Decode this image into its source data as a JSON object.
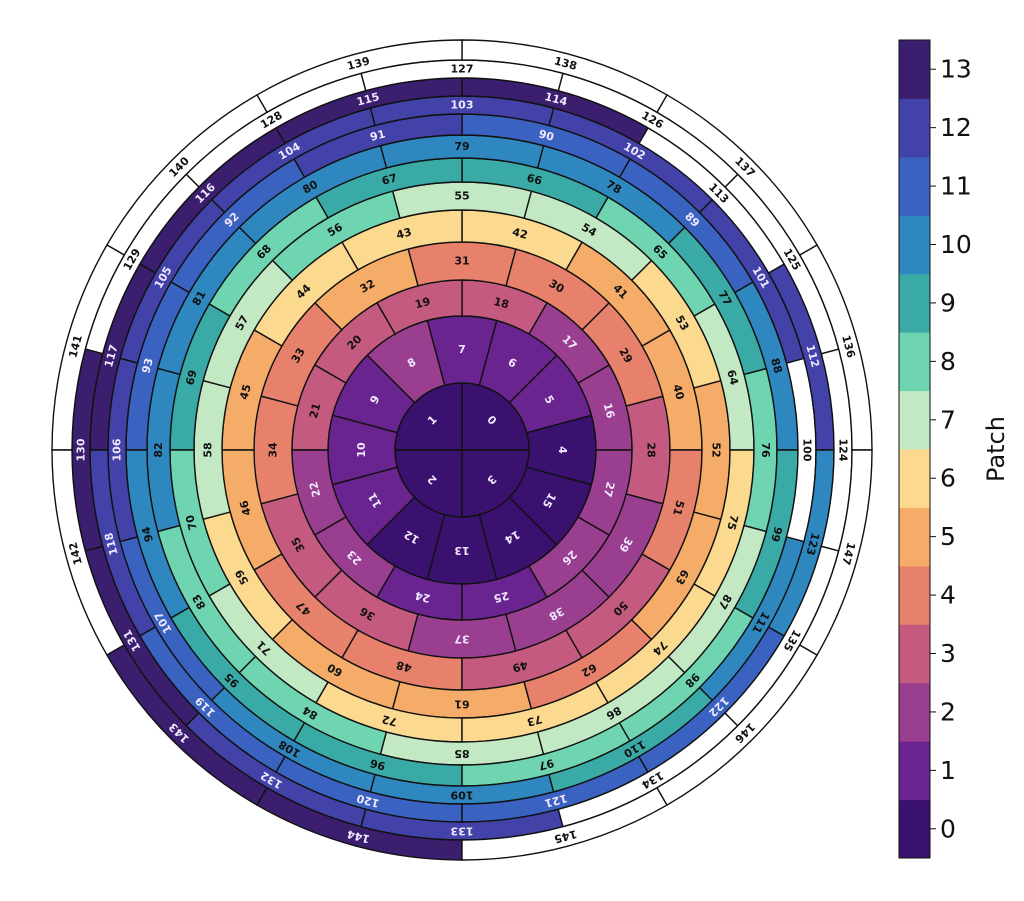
{
  "colorbar": {
    "label": "Patch",
    "ticks": [
      "0",
      "1",
      "2",
      "3",
      "4",
      "5",
      "6",
      "7",
      "8",
      "9",
      "10",
      "11",
      "12",
      "13"
    ],
    "colors": [
      "#3b1170",
      "#6a2490",
      "#9a3f90",
      "#c45a80",
      "#e8816b",
      "#f4ac68",
      "#fbd98e",
      "#c2e8c4",
      "#6fd4b0",
      "#3aaaa6",
      "#2f87c0",
      "#3a62c0",
      "#4242a8",
      "#3b1f6e"
    ]
  },
  "unassigned_color": "#ffffff",
  "rings": [
    {
      "cells": [
        "0",
        "1",
        "2",
        "3"
      ],
      "patches": [
        0,
        0,
        0,
        0
      ]
    },
    {
      "cells": [
        "4",
        "5",
        "6",
        "7",
        "8",
        "9",
        "10",
        "11",
        "12",
        "13",
        "14",
        "15"
      ],
      "patches": [
        0,
        1,
        1,
        1,
        2,
        1,
        1,
        1,
        0,
        0,
        0,
        0
      ]
    },
    {
      "cells": [
        "16",
        "17",
        "18",
        "19",
        "20",
        "21",
        "22",
        "23",
        "24",
        "25",
        "26",
        "27"
      ],
      "patches": [
        2,
        2,
        3,
        3,
        3,
        3,
        2,
        2,
        1,
        1,
        2,
        2
      ]
    },
    {
      "cells": [
        "28",
        "29",
        "30",
        "31",
        "32",
        "33",
        "34",
        "35",
        "36",
        "37",
        "38",
        "39"
      ],
      "patches": [
        3,
        4,
        4,
        4,
        5,
        4,
        4,
        3,
        3,
        2,
        2,
        2
      ]
    },
    {
      "cells": [
        "40",
        "41",
        "42",
        "43",
        "44",
        "45",
        "46",
        "47",
        "48",
        "49",
        "50",
        "51"
      ],
      "patches": [
        5,
        5,
        6,
        6,
        6,
        5,
        5,
        4,
        4,
        3,
        3,
        4
      ]
    },
    {
      "cells": [
        "52",
        "53",
        "54",
        "55",
        "56",
        "57",
        "58",
        "59",
        "60",
        "61",
        "62",
        "63"
      ],
      "patches": [
        5,
        6,
        7,
        7,
        8,
        7,
        7,
        6,
        5,
        5,
        4,
        5
      ]
    },
    {
      "cells": [
        "64",
        "65",
        "66",
        "67",
        "68",
        "69",
        "70",
        "71",
        "72",
        "73",
        "74",
        "75"
      ],
      "patches": [
        7,
        8,
        9,
        9,
        8,
        9,
        8,
        7,
        6,
        6,
        6,
        6
      ]
    },
    {
      "cells": [
        "76",
        "77",
        "78",
        "79",
        "80",
        "81",
        "82",
        "83",
        "84",
        "85",
        "86",
        "87"
      ],
      "patches": [
        8,
        9,
        10,
        10,
        10,
        10,
        10,
        8,
        8,
        7,
        7,
        7
      ]
    },
    {
      "cells": [
        "88",
        "89",
        "90",
        "91",
        "92",
        "93",
        "94",
        "95",
        "96",
        "97",
        "98",
        "99"
      ],
      "patches": [
        10,
        11,
        11,
        12,
        11,
        11,
        10,
        9,
        9,
        8,
        8,
        9
      ]
    },
    {
      "cells": [
        "100",
        "101",
        "102",
        "103",
        "104",
        "105",
        "106",
        "107",
        "108",
        "109",
        "110",
        "111"
      ],
      "patches": [
        null,
        12,
        12,
        12,
        12,
        12,
        12,
        11,
        10,
        10,
        9,
        10
      ]
    },
    {
      "cells": [
        "112",
        "113",
        "114",
        "115",
        "116",
        "117",
        "118",
        "119",
        "120",
        "121",
        "122",
        "123"
      ],
      "patches": [
        12,
        null,
        13,
        13,
        13,
        13,
        12,
        11,
        11,
        11,
        11,
        10
      ]
    },
    {
      "cells": [
        "124",
        "125",
        "126",
        "127",
        "128",
        "129",
        "130",
        "131",
        "132",
        "133",
        "134",
        "135"
      ],
      "patches": [
        null,
        null,
        null,
        null,
        null,
        null,
        13,
        13,
        12,
        12,
        null,
        null
      ]
    },
    {
      "cells": [
        "136",
        "137",
        "138",
        "139",
        "140",
        "141",
        "142",
        "143",
        "144",
        "145",
        "146",
        "147"
      ],
      "patches": [
        null,
        null,
        null,
        null,
        null,
        null,
        null,
        13,
        13,
        null,
        null,
        null
      ]
    }
  ]
}
